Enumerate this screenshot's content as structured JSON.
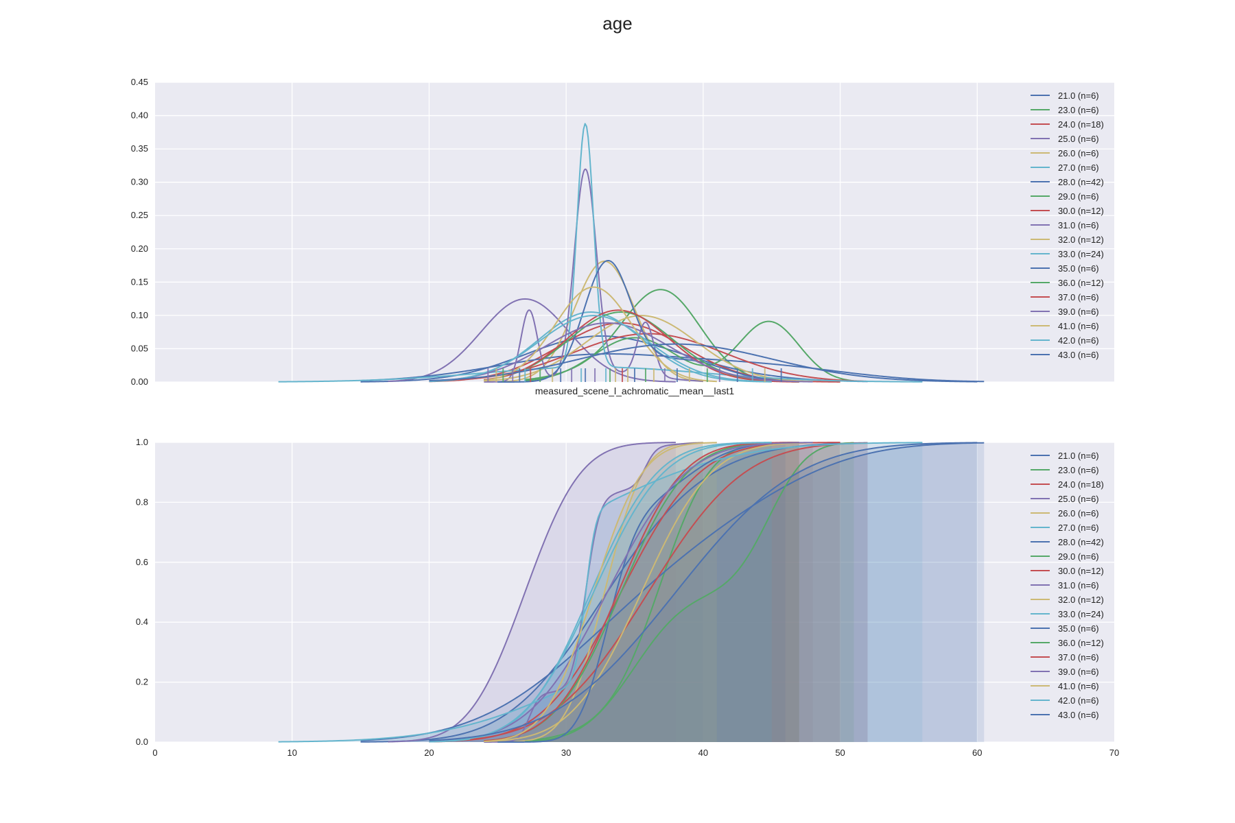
{
  "figure": {
    "title": "age"
  },
  "colors": {
    "palette": [
      "#4c72b0",
      "#55a868",
      "#c44e52",
      "#8172b2",
      "#ccb974",
      "#64b5cd"
    ],
    "background": "#eaeaf2",
    "grid": "#ffffff"
  },
  "chart_data": [
    {
      "type": "line",
      "subtype": "kde-with-rug",
      "title": "",
      "xlabel": "measured_scene_l_achromatic__mean__last1",
      "ylabel": "",
      "xlim": [
        0,
        70
      ],
      "ylim": [
        0,
        0.45
      ],
      "xticks": [
        10,
        20,
        30,
        40,
        50,
        60
      ],
      "yticks": [
        "0.00",
        "0.05",
        "0.10",
        "0.15",
        "0.20",
        "0.25",
        "0.30",
        "0.35",
        "0.40",
        "0.45"
      ],
      "show_xtick_labels": false,
      "grid": true,
      "legend_position": "top-right",
      "series": [
        {
          "name": "21.0 (n=6)",
          "components": [
            [
              31.3,
              5.0,
              0.55
            ],
            [
              35.5,
              6.0,
              0.45
            ]
          ],
          "x_min": 15,
          "x_max": 52
        },
        {
          "name": "23.0 (n=6)",
          "components": [
            [
              37.0,
              2.8,
              0.95
            ],
            [
              32.0,
              3.0,
              0.1
            ]
          ],
          "x_min": 27,
          "x_max": 47
        },
        {
          "name": "24.0 (n=18)",
          "components": [
            [
              34.0,
              4.5,
              1.0
            ]
          ],
          "x_min": 20,
          "x_max": 50
        },
        {
          "name": "25.0 (n=6)",
          "components": [
            [
              27.0,
              3.2,
              1.0
            ]
          ],
          "x_min": 17,
          "x_max": 38
        },
        {
          "name": "26.0 (n=6)",
          "components": [
            [
              32.8,
              2.2,
              1.0
            ]
          ],
          "x_min": 25,
          "x_max": 40
        },
        {
          "name": "27.0 (n=6)",
          "components": [
            [
              31.8,
              3.8,
              1.0
            ]
          ],
          "x_min": 20,
          "x_max": 45
        },
        {
          "name": "28.0 (n=42)",
          "components": [
            [
              32.0,
              7.0,
              0.7
            ],
            [
              45.0,
              6.0,
              0.3
            ]
          ],
          "x_min": 15,
          "x_max": 60.5
        },
        {
          "name": "29.0 (n=6)",
          "components": [
            [
              35.0,
              3.0,
              0.5
            ],
            [
              44.8,
              2.2,
              0.5
            ]
          ],
          "x_min": 27,
          "x_max": 51
        },
        {
          "name": "30.0 (n=12)",
          "components": [
            [
              36.0,
              5.5,
              1.0
            ]
          ],
          "x_min": 23,
          "x_max": 52
        },
        {
          "name": "31.0 (n=6)",
          "components": [
            [
              27.3,
              0.6,
              0.16
            ],
            [
              31.4,
              0.8,
              0.62
            ],
            [
              35.8,
              0.6,
              0.12
            ],
            [
              33.5,
              3.0,
              0.1
            ]
          ],
          "x_min": 24,
          "x_max": 40
        },
        {
          "name": "32.0 (n=12)",
          "components": [
            [
              35.5,
              4.0,
              1.0
            ]
          ],
          "x_min": 24,
          "x_max": 48
        },
        {
          "name": "33.0 (n=24)",
          "components": [
            [
              31.4,
              0.6,
              0.55
            ],
            [
              32.0,
              8.0,
              0.45
            ]
          ],
          "x_min": 9,
          "x_max": 56
        },
        {
          "name": "35.0 (n=6)",
          "components": [
            [
              33.0,
              1.7,
              0.75
            ],
            [
              38.5,
              3.0,
              0.25
            ]
          ],
          "x_min": 25,
          "x_max": 46
        },
        {
          "name": "36.0 (n=12)",
          "components": [
            [
              34.0,
              3.8,
              1.0
            ]
          ],
          "x_min": 24,
          "x_max": 47
        },
        {
          "name": "37.0 (n=6)",
          "components": [
            [
              33.8,
              3.7,
              1.0
            ]
          ],
          "x_min": 24,
          "x_max": 47
        },
        {
          "name": "39.0 (n=6)",
          "components": [
            [
              33.0,
              4.5,
              1.0
            ]
          ],
          "x_min": 21,
          "x_max": 48
        },
        {
          "name": "41.0 (n=6)",
          "components": [
            [
              32.0,
              2.8,
              1.0
            ]
          ],
          "x_min": 24,
          "x_max": 41
        },
        {
          "name": "42.0 (n=6)",
          "components": [
            [
              32.0,
              4.0,
              1.0
            ]
          ],
          "x_min": 21,
          "x_max": 45
        },
        {
          "name": "43.0 (n=6)",
          "components": [
            [
              38.0,
              7.0,
              1.0
            ]
          ],
          "x_min": 20,
          "x_max": 60
        }
      ],
      "rug": [
        {
          "x": 24.3,
          "s": 3
        },
        {
          "x": 24.9,
          "s": 4
        },
        {
          "x": 25.4,
          "s": 1
        },
        {
          "x": 26.1,
          "s": 3
        },
        {
          "x": 26.6,
          "s": 0
        },
        {
          "x": 27.0,
          "s": 5
        },
        {
          "x": 27.4,
          "s": 2
        },
        {
          "x": 28.1,
          "s": 1
        },
        {
          "x": 29.0,
          "s": 4
        },
        {
          "x": 29.6,
          "s": 0
        },
        {
          "x": 30.4,
          "s": 3
        },
        {
          "x": 31.1,
          "s": 5
        },
        {
          "x": 31.4,
          "s": 0
        },
        {
          "x": 32.1,
          "s": 3
        },
        {
          "x": 32.9,
          "s": 5
        },
        {
          "x": 33.2,
          "s": 1
        },
        {
          "x": 33.6,
          "s": 4
        },
        {
          "x": 34.1,
          "s": 2
        },
        {
          "x": 34.5,
          "s": 4
        },
        {
          "x": 35.0,
          "s": 0
        },
        {
          "x": 35.8,
          "s": 1
        },
        {
          "x": 36.4,
          "s": 4
        },
        {
          "x": 37.2,
          "s": 3
        },
        {
          "x": 38.1,
          "s": 0
        },
        {
          "x": 39.0,
          "s": 4
        },
        {
          "x": 40.3,
          "s": 1
        },
        {
          "x": 41.2,
          "s": 3
        },
        {
          "x": 42.5,
          "s": 0
        },
        {
          "x": 43.6,
          "s": 5
        },
        {
          "x": 44.5,
          "s": 4
        },
        {
          "x": 45.7,
          "s": 0
        }
      ]
    },
    {
      "type": "area",
      "subtype": "cumulative-kde",
      "title": "",
      "xlabel": "",
      "ylabel": "",
      "xlim": [
        0,
        70
      ],
      "ylim": [
        0,
        1.0
      ],
      "xticks": [
        "0",
        "10",
        "20",
        "30",
        "40",
        "50",
        "60",
        "70"
      ],
      "yticks": [
        "0.0",
        "0.2",
        "0.4",
        "0.6",
        "0.8",
        "1.0"
      ],
      "grid": true,
      "legend_position": "top-right",
      "fill_opacity": 0.15,
      "same_series_as_above": true
    }
  ]
}
